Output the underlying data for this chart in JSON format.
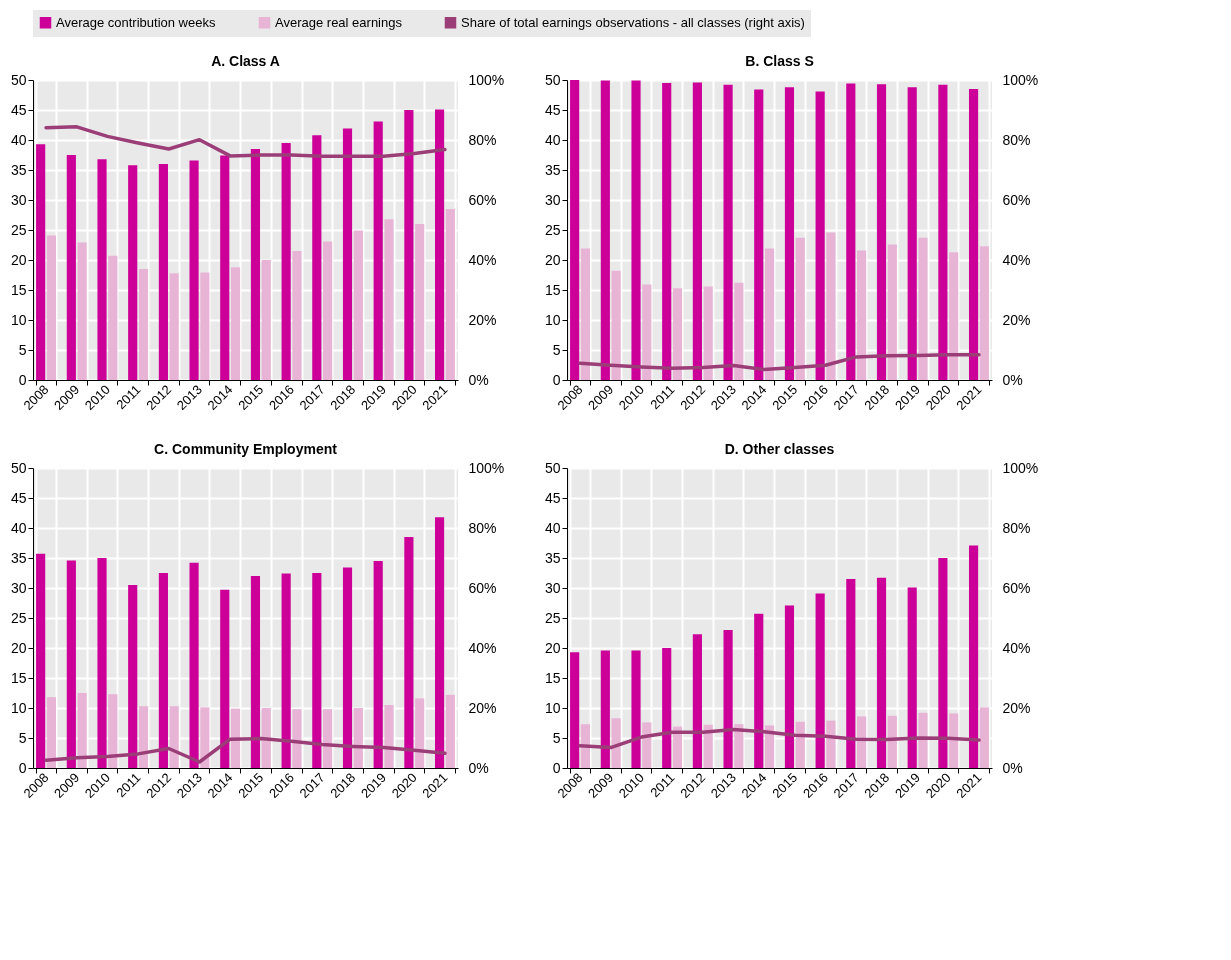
{
  "chart_data": [
    {
      "type": "bar",
      "title": "A. Class A",
      "legend": "top",
      "grid": true,
      "categories": [
        "2008",
        "2009",
        "2010",
        "2011",
        "2012",
        "2013",
        "2014",
        "2015",
        "2016",
        "2017",
        "2018",
        "2019",
        "2020",
        "2021"
      ],
      "ylim": [
        0,
        50
      ],
      "yticks": [
        0,
        5,
        10,
        15,
        20,
        25,
        30,
        35,
        40,
        45,
        50
      ],
      "y2lim": [
        0,
        100
      ],
      "y2ticks": [
        {
          "value": 0,
          "label": "0%"
        },
        {
          "value": 20,
          "label": "20%"
        },
        {
          "value": 40,
          "label": "40%"
        },
        {
          "value": 60,
          "label": "60%"
        },
        {
          "value": 80,
          "label": "80%"
        },
        {
          "value": 100,
          "label": "100%"
        }
      ],
      "series": [
        {
          "name": "Average contribution weeks",
          "color": "#cc0099",
          "values": [
            39.3,
            37.5,
            36.8,
            35.8,
            36.0,
            36.6,
            37.4,
            38.5,
            39.5,
            40.8,
            41.9,
            43.1,
            45.0,
            45.1
          ]
        },
        {
          "name": "Average real earnings",
          "color": "#e8b4d6",
          "values": [
            24.1,
            22.9,
            20.7,
            18.5,
            17.8,
            17.9,
            18.8,
            20.0,
            21.5,
            23.1,
            24.9,
            26.8,
            26.0,
            28.5
          ]
        },
        {
          "name": "Share of total earnings observations - all classes (right axis)",
          "type": "line",
          "axis": "y2",
          "color": "#9b3e78",
          "values": [
            84.1,
            84.4,
            81.2,
            79.0,
            77.0,
            80.1,
            74.7,
            75.0,
            75.0,
            74.6,
            74.6,
            74.6,
            75.5,
            76.8
          ]
        }
      ]
    },
    {
      "type": "bar",
      "title": "B. Class S",
      "legend": "top",
      "grid": true,
      "categories": [
        "2008",
        "2009",
        "2010",
        "2011",
        "2012",
        "2013",
        "2014",
        "2015",
        "2016",
        "2017",
        "2018",
        "2019",
        "2020",
        "2021"
      ],
      "ylim": [
        0,
        50
      ],
      "yticks": [
        0,
        5,
        10,
        15,
        20,
        25,
        30,
        35,
        40,
        45,
        50
      ],
      "y2lim": [
        0,
        100
      ],
      "y2ticks": [
        {
          "value": 0,
          "label": "0%"
        },
        {
          "value": 20,
          "label": "20%"
        },
        {
          "value": 40,
          "label": "40%"
        },
        {
          "value": 60,
          "label": "60%"
        },
        {
          "value": 80,
          "label": "80%"
        },
        {
          "value": 100,
          "label": "100%"
        }
      ],
      "series": [
        {
          "name": "Average contribution weeks",
          "color": "#cc0099",
          "values": [
            50.0,
            49.9,
            49.9,
            49.5,
            49.6,
            49.2,
            48.4,
            48.8,
            48.1,
            49.4,
            49.3,
            48.8,
            49.2,
            48.5
          ]
        },
        {
          "name": "Average real earnings",
          "color": "#e8b4d6",
          "values": [
            21.9,
            18.2,
            15.9,
            15.3,
            15.6,
            16.2,
            21.9,
            23.7,
            24.6,
            21.6,
            22.6,
            23.7,
            21.3,
            22.3
          ]
        },
        {
          "name": "Share of total earnings observations - all classes (right axis)",
          "type": "line",
          "axis": "y2",
          "color": "#9b3e78",
          "values": [
            5.6,
            4.9,
            4.3,
            3.9,
            4.2,
            4.8,
            3.5,
            4.2,
            4.9,
            7.7,
            8.1,
            8.2,
            8.4,
            8.4
          ]
        }
      ]
    },
    {
      "type": "bar",
      "title": "C. Community Employment",
      "legend": "top",
      "grid": true,
      "categories": [
        "2008",
        "2009",
        "2010",
        "2011",
        "2012",
        "2013",
        "2014",
        "2015",
        "2016",
        "2017",
        "2018",
        "2019",
        "2020",
        "2021"
      ],
      "ylim": [
        0,
        50
      ],
      "yticks": [
        0,
        5,
        10,
        15,
        20,
        25,
        30,
        35,
        40,
        45,
        50
      ],
      "y2lim": [
        0,
        100
      ],
      "y2ticks": [
        {
          "value": 0,
          "label": "0%"
        },
        {
          "value": 20,
          "label": "20%"
        },
        {
          "value": 40,
          "label": "40%"
        },
        {
          "value": 60,
          "label": "60%"
        },
        {
          "value": 80,
          "label": "80%"
        },
        {
          "value": 100,
          "label": "100%"
        }
      ],
      "series": [
        {
          "name": "Average contribution weeks",
          "color": "#cc0099",
          "values": [
            35.7,
            34.6,
            35.0,
            30.5,
            32.5,
            34.2,
            29.7,
            32.0,
            32.4,
            32.5,
            33.4,
            34.5,
            38.5,
            41.8
          ]
        },
        {
          "name": "Average real earnings",
          "color": "#e8b4d6",
          "values": [
            11.8,
            12.5,
            12.3,
            10.3,
            10.3,
            10.1,
            9.9,
            10.0,
            9.8,
            9.8,
            10.0,
            10.5,
            11.6,
            12.2
          ]
        },
        {
          "name": "Share of total earnings observations - all classes (right axis)",
          "type": "line",
          "axis": "y2",
          "color": "#9b3e78",
          "values": [
            2.6,
            3.4,
            3.8,
            4.7,
            6.5,
            2.0,
            9.6,
            9.8,
            8.9,
            7.8,
            7.2,
            6.8,
            5.9,
            4.9
          ]
        }
      ]
    },
    {
      "type": "bar",
      "title": "D. Other classes",
      "legend": "top",
      "grid": true,
      "categories": [
        "2008",
        "2009",
        "2010",
        "2011",
        "2012",
        "2013",
        "2014",
        "2015",
        "2016",
        "2017",
        "2018",
        "2019",
        "2020",
        "2021"
      ],
      "ylim": [
        0,
        50
      ],
      "yticks": [
        0,
        5,
        10,
        15,
        20,
        25,
        30,
        35,
        40,
        45,
        50
      ],
      "y2lim": [
        0,
        100
      ],
      "y2ticks": [
        {
          "value": 0,
          "label": "0%"
        },
        {
          "value": 20,
          "label": "20%"
        },
        {
          "value": 40,
          "label": "40%"
        },
        {
          "value": 60,
          "label": "60%"
        },
        {
          "value": 80,
          "label": "80%"
        },
        {
          "value": 100,
          "label": "100%"
        }
      ],
      "series": [
        {
          "name": "Average contribution weeks",
          "color": "#cc0099",
          "values": [
            19.3,
            19.6,
            19.6,
            20.0,
            22.3,
            23.0,
            25.7,
            27.1,
            29.1,
            31.5,
            31.7,
            30.1,
            35.0,
            37.1
          ]
        },
        {
          "name": "Average real earnings",
          "color": "#e8b4d6",
          "values": [
            7.3,
            8.3,
            7.6,
            6.9,
            7.2,
            7.3,
            7.1,
            7.7,
            7.9,
            8.6,
            8.7,
            9.2,
            9.1,
            10.1
          ]
        },
        {
          "name": "Share of total earnings observations - all classes (right axis)",
          "type": "line",
          "axis": "y2",
          "color": "#9b3e78",
          "values": [
            7.4,
            6.8,
            10.3,
            11.9,
            11.9,
            12.8,
            12.1,
            10.9,
            10.6,
            9.6,
            9.5,
            10.0,
            9.9,
            9.3
          ]
        }
      ]
    }
  ]
}
